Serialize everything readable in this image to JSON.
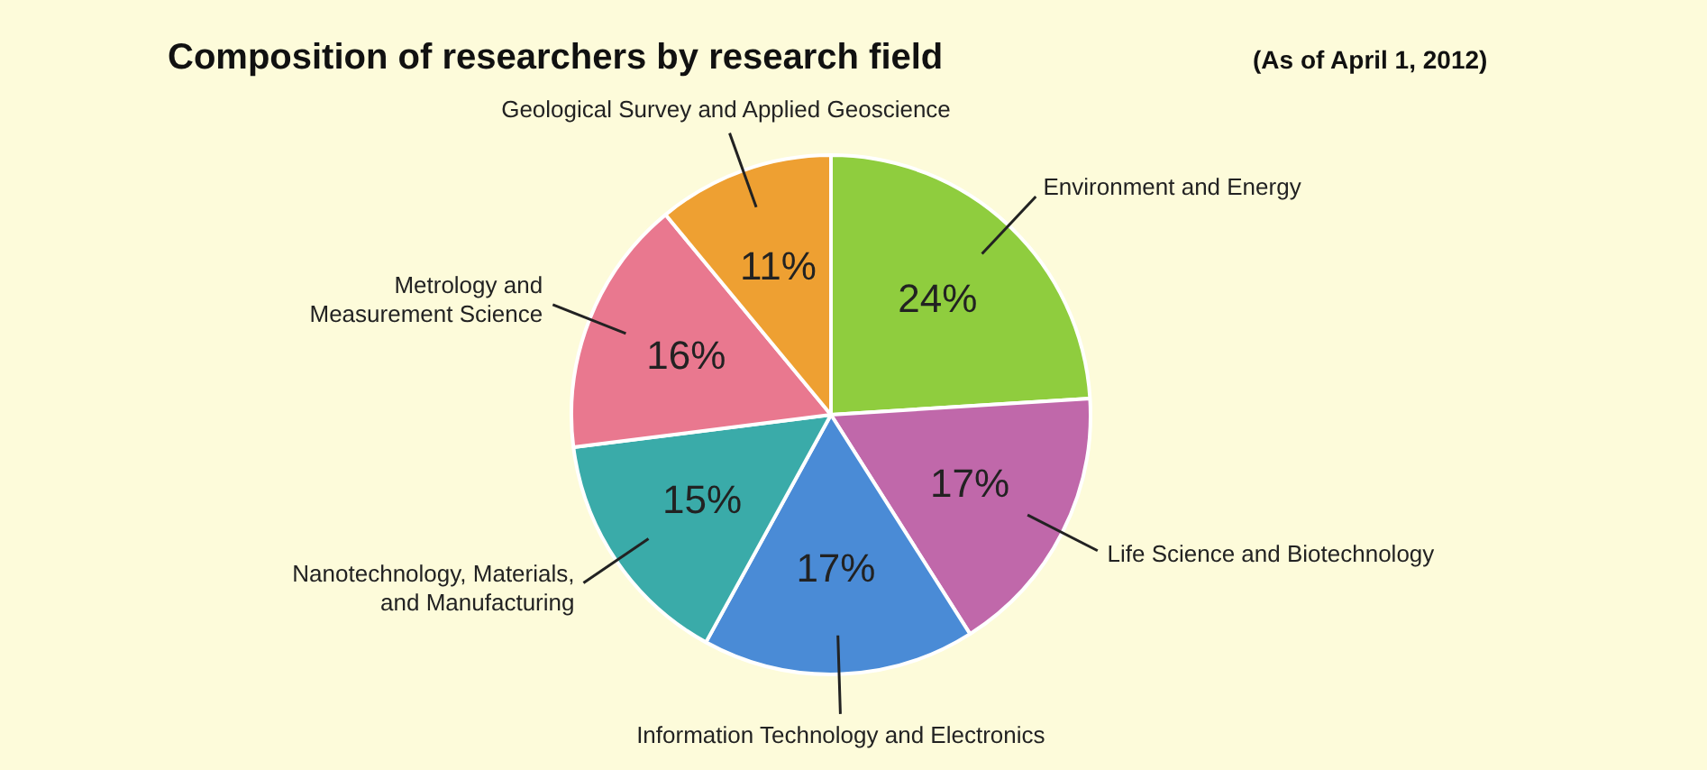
{
  "chart_data": {
    "type": "pie",
    "title": "Composition of researchers by research field",
    "subtitle": "(As of April 1, 2012)",
    "categories": [
      "Environment and Energy",
      "Life Science and Biotechnology",
      "Information Technology and Electronics",
      "Nanotechnology, Materials, and Manufacturing",
      "Metrology and Measurement Science",
      "Geological Survey and Applied Geoscience"
    ],
    "values": [
      24,
      17,
      17,
      15,
      16,
      11
    ],
    "colors": [
      "#8fcd3e",
      "#c068aa",
      "#4a8bd6",
      "#3aaba9",
      "#e9788f",
      "#eea032"
    ],
    "value_labels": [
      "24%",
      "17%",
      "17%",
      "15%",
      "16%",
      "11%"
    ]
  }
}
